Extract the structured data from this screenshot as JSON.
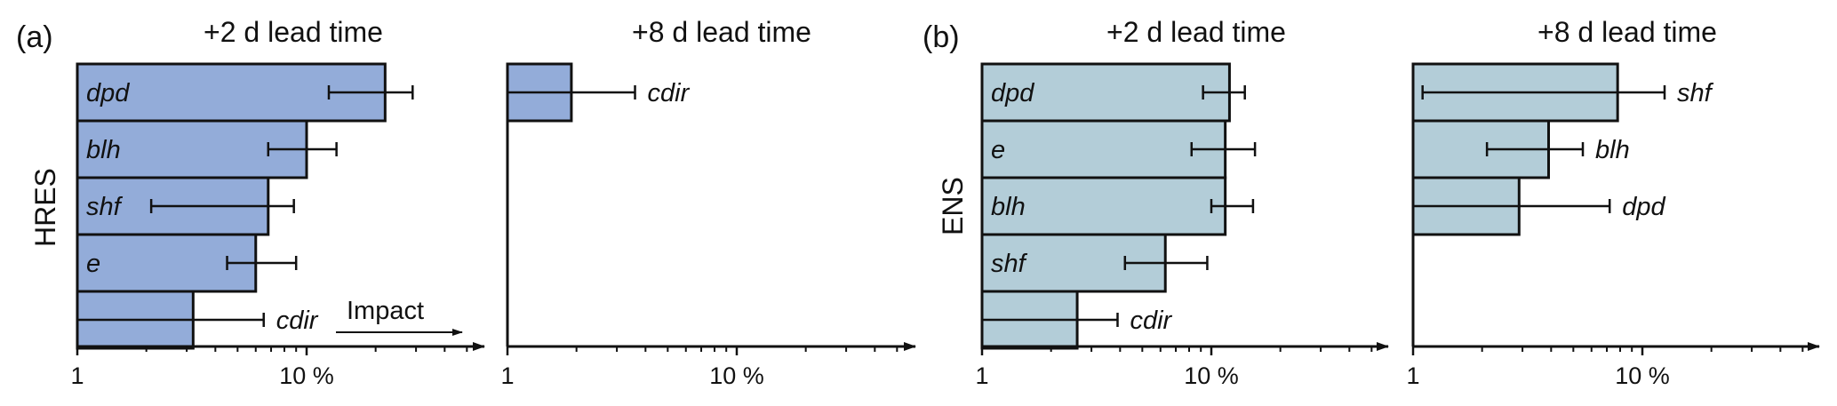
{
  "colors": {
    "hres_bar": "#93acd9",
    "ens_bar": "#b3cdd8",
    "stroke": "#111111"
  },
  "annotation": {
    "impact_label": "Impact"
  },
  "panels": [
    {
      "letter": "(a)",
      "row_label": "HRES"
    },
    {
      "letter": "(b)",
      "row_label": "ENS"
    }
  ],
  "chart_data": [
    {
      "type": "bar",
      "orientation": "horizontal",
      "panel": "(a)",
      "row_label": "HRES",
      "title": "+2 d lead time",
      "x_scale": "log",
      "xlim": [
        1,
        60
      ],
      "x_ticks": [
        {
          "value": 1,
          "label": "1"
        },
        {
          "value": 10,
          "label": "10 %"
        }
      ],
      "color": "#93acd9",
      "label_inside": true,
      "bars": [
        {
          "label": "dpd",
          "value": 22,
          "err": [
            12.5,
            29
          ]
        },
        {
          "label": "blh",
          "value": 10,
          "err": [
            6.8,
            13.5
          ]
        },
        {
          "label": "shf",
          "value": 6.8,
          "err": [
            2.1,
            8.8
          ]
        },
        {
          "label": "e",
          "value": 6,
          "err": [
            4.5,
            9
          ]
        },
        {
          "label": "cdir",
          "value": 3.2,
          "err": [
            1,
            6.5
          ]
        }
      ]
    },
    {
      "type": "bar",
      "orientation": "horizontal",
      "panel": "(a)",
      "row_label": "HRES",
      "title": "+8 d lead time",
      "x_scale": "log",
      "xlim": [
        1,
        60
      ],
      "x_ticks": [
        {
          "value": 1,
          "label": "1"
        },
        {
          "value": 10,
          "label": "10 %"
        }
      ],
      "color": "#93acd9",
      "label_inside": false,
      "bars": [
        {
          "label": "cdir",
          "value": 1.9,
          "err": [
            1,
            3.6
          ]
        }
      ]
    },
    {
      "type": "bar",
      "orientation": "horizontal",
      "panel": "(b)",
      "row_label": "ENS",
      "title": "+2 d lead time",
      "x_scale": "log",
      "xlim": [
        1,
        60
      ],
      "x_ticks": [
        {
          "value": 1,
          "label": "1"
        },
        {
          "value": 10,
          "label": "10 %"
        }
      ],
      "color": "#b3cdd8",
      "label_inside": true,
      "bars": [
        {
          "label": "dpd",
          "value": 12,
          "err": [
            9.2,
            14
          ]
        },
        {
          "label": "e",
          "value": 11.5,
          "err": [
            8.2,
            15.5
          ]
        },
        {
          "label": "blh",
          "value": 11.5,
          "err": [
            10,
            15.2
          ]
        },
        {
          "label": "shf",
          "value": 6.3,
          "err": [
            4.2,
            9.6
          ]
        },
        {
          "label": "cdir",
          "value": 2.6,
          "err": [
            1,
            3.9
          ]
        }
      ]
    },
    {
      "type": "bar",
      "orientation": "horizontal",
      "panel": "(b)",
      "row_label": "ENS",
      "title": "+8 d lead time",
      "x_scale": "log",
      "xlim": [
        1,
        60
      ],
      "x_ticks": [
        {
          "value": 1,
          "label": "1"
        },
        {
          "value": 10,
          "label": "10 %"
        }
      ],
      "color": "#b3cdd8",
      "label_inside": false,
      "bars": [
        {
          "label": "shf",
          "value": 7.8,
          "err": [
            1.1,
            12.5
          ]
        },
        {
          "label": "blh",
          "value": 3.9,
          "err": [
            2.1,
            5.5
          ]
        },
        {
          "label": "dpd",
          "value": 2.9,
          "err": [
            1,
            7.2
          ]
        }
      ]
    }
  ]
}
